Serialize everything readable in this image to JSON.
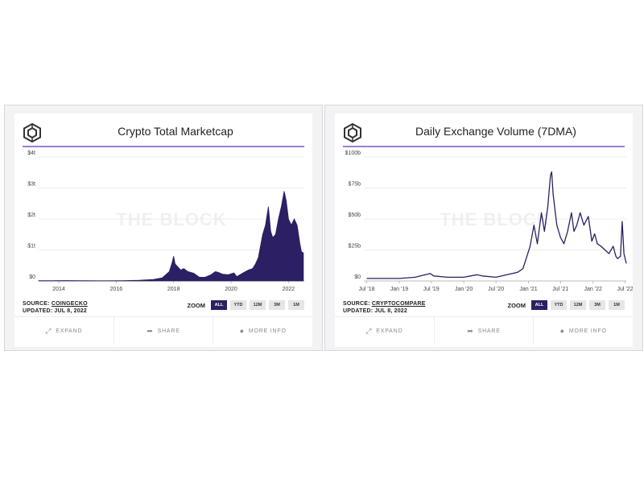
{
  "watermark": "THE BLOCK",
  "zoom_label": "ZOOM",
  "zoom_options": [
    "ALL",
    "YTD",
    "12M",
    "3M",
    "1M"
  ],
  "footer": {
    "expand": "EXPAND",
    "share": "SHARE",
    "more_info": "MORE INFO"
  },
  "colors": {
    "series": "#2d1f63",
    "accent_rule": "#9b7fd6",
    "active_zoom": "#2d1f63"
  },
  "icons": {
    "logo": "the-block-logo-icon",
    "expand": "expand-arrows-icon",
    "share": "share-arrow-icon",
    "info": "info-circle-icon"
  },
  "left": {
    "title": "Crypto Total Marketcap",
    "source_prefix": "SOURCE: ",
    "source_name": "COINGECKO",
    "updated": "UPDATED: JUL 8, 2022"
  },
  "right": {
    "title": "Daily Exchange Volume (7DMA)",
    "source_prefix": "SOURCE: ",
    "source_name": "CRYPTOCOMPARE",
    "updated": "UPDATED: JUL 8, 2022"
  },
  "chart_data": [
    {
      "type": "area",
      "title": "Crypto Total Marketcap",
      "x_unit": "year",
      "ylim": [
        0,
        4
      ],
      "y_ticks": [
        0,
        1,
        2,
        3,
        4
      ],
      "y_tick_labels": [
        "$0",
        "$1t",
        "$2t",
        "$3t",
        "$4t"
      ],
      "x_ticks": [
        2014,
        2016,
        2018,
        2020,
        2022
      ],
      "x_tick_labels": [
        "2014",
        "2016",
        "2018",
        "2020",
        "2022"
      ],
      "xlim": [
        2013.3,
        2022.55
      ],
      "grid": true,
      "series": [
        {
          "x": [
            2013.3,
            2013.8,
            2014.2,
            2014.8,
            2015.5,
            2016.2,
            2016.8,
            2017.3,
            2017.6,
            2017.85,
            2017.95,
            2018.0,
            2018.05,
            2018.15,
            2018.25,
            2018.35,
            2018.5,
            2018.7,
            2018.9,
            2019.1,
            2019.3,
            2019.45,
            2019.55,
            2019.7,
            2019.9,
            2020.1,
            2020.2,
            2020.4,
            2020.6,
            2020.75,
            2020.85,
            2020.95,
            2021.0,
            2021.1,
            2021.2,
            2021.3,
            2021.38,
            2021.45,
            2021.55,
            2021.65,
            2021.75,
            2021.85,
            2021.92,
            2022.0,
            2022.1,
            2022.2,
            2022.3,
            2022.4,
            2022.45,
            2022.52
          ],
          "y": [
            0.01,
            0.01,
            0.012,
            0.01,
            0.006,
            0.01,
            0.02,
            0.05,
            0.1,
            0.3,
            0.6,
            0.8,
            0.55,
            0.45,
            0.35,
            0.4,
            0.3,
            0.25,
            0.12,
            0.12,
            0.2,
            0.3,
            0.28,
            0.22,
            0.2,
            0.26,
            0.14,
            0.25,
            0.35,
            0.4,
            0.55,
            0.75,
            1.0,
            1.5,
            1.8,
            2.4,
            1.6,
            1.4,
            1.5,
            2.0,
            2.4,
            2.9,
            2.6,
            2.0,
            1.8,
            2.0,
            1.8,
            1.2,
            0.95,
            0.9
          ]
        }
      ]
    },
    {
      "type": "line",
      "title": "Daily Exchange Volume (7DMA)",
      "x_unit": "date",
      "ylim": [
        0,
        100
      ],
      "y_ticks": [
        0,
        25,
        50,
        75,
        100
      ],
      "y_tick_labels": [
        "$0",
        "$25b",
        "$50b",
        "$75b",
        "$100b"
      ],
      "x_ticks": [
        "2018-07-01",
        "2019-01-01",
        "2019-07-01",
        "2020-01-01",
        "2020-07-01",
        "2021-01-01",
        "2021-07-01",
        "2022-01-01",
        "2022-07-01"
      ],
      "x_tick_labels": [
        "Jul '18",
        "Jan '19",
        "Jul '19",
        "Jan '20",
        "Jul '20",
        "Jan '21",
        "Jul '21",
        "Jan '22",
        "Jul '22"
      ],
      "xlim": [
        "2018-06-15",
        "2022-07-08"
      ],
      "grid": true,
      "series": [
        {
          "x": [
            "2018-07-01",
            "2018-10-01",
            "2019-01-01",
            "2019-04-01",
            "2019-06-25",
            "2019-07-15",
            "2019-10-01",
            "2020-01-01",
            "2020-03-15",
            "2020-04-15",
            "2020-07-01",
            "2020-09-01",
            "2020-11-01",
            "2020-12-01",
            "2021-01-10",
            "2021-02-01",
            "2021-02-20",
            "2021-03-15",
            "2021-04-01",
            "2021-04-20",
            "2021-05-05",
            "2021-05-12",
            "2021-05-20",
            "2021-06-10",
            "2021-07-01",
            "2021-07-20",
            "2021-08-10",
            "2021-09-01",
            "2021-09-15",
            "2021-10-01",
            "2021-10-20",
            "2021-11-10",
            "2021-12-05",
            "2021-12-25",
            "2022-01-10",
            "2022-01-25",
            "2022-02-15",
            "2022-03-10",
            "2022-04-01",
            "2022-04-25",
            "2022-05-10",
            "2022-05-20",
            "2022-06-05",
            "2022-06-15",
            "2022-06-25",
            "2022-07-08"
          ],
          "y": [
            2,
            2,
            2,
            3,
            6,
            4,
            3,
            3,
            5,
            4,
            3,
            5,
            7,
            10,
            28,
            45,
            30,
            55,
            40,
            60,
            85,
            88,
            70,
            45,
            35,
            30,
            40,
            55,
            40,
            45,
            55,
            45,
            52,
            32,
            38,
            30,
            28,
            25,
            22,
            28,
            20,
            18,
            20,
            48,
            22,
            14
          ]
        }
      ]
    }
  ]
}
